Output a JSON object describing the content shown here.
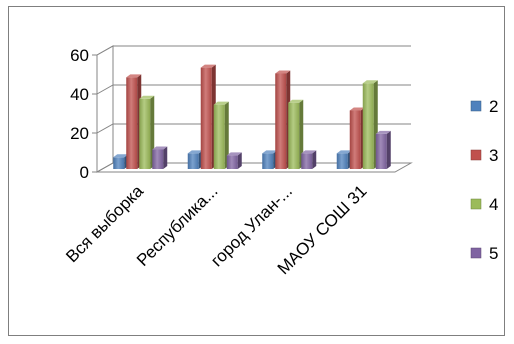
{
  "chart_data": {
    "type": "bar",
    "categories": [
      "Вся выборка",
      "Республика...",
      "город Улан-...",
      "МАОУ СОШ 31"
    ],
    "series": [
      {
        "name": "2",
        "values": [
          6,
          8,
          8,
          8
        ],
        "color": "#4f81bd"
      },
      {
        "name": "3",
        "values": [
          47,
          52,
          49,
          30
        ],
        "color": "#c0504d"
      },
      {
        "name": "4",
        "values": [
          36,
          33,
          34,
          44
        ],
        "color": "#9bbb59"
      },
      {
        "name": "5",
        "values": [
          10,
          7,
          8,
          18
        ],
        "color": "#8064a2"
      }
    ],
    "ylim": [
      0,
      60
    ],
    "yticks": [
      0,
      20,
      40,
      60
    ],
    "grid": true,
    "legend_position": "right",
    "style": "3d-clustered-column"
  }
}
